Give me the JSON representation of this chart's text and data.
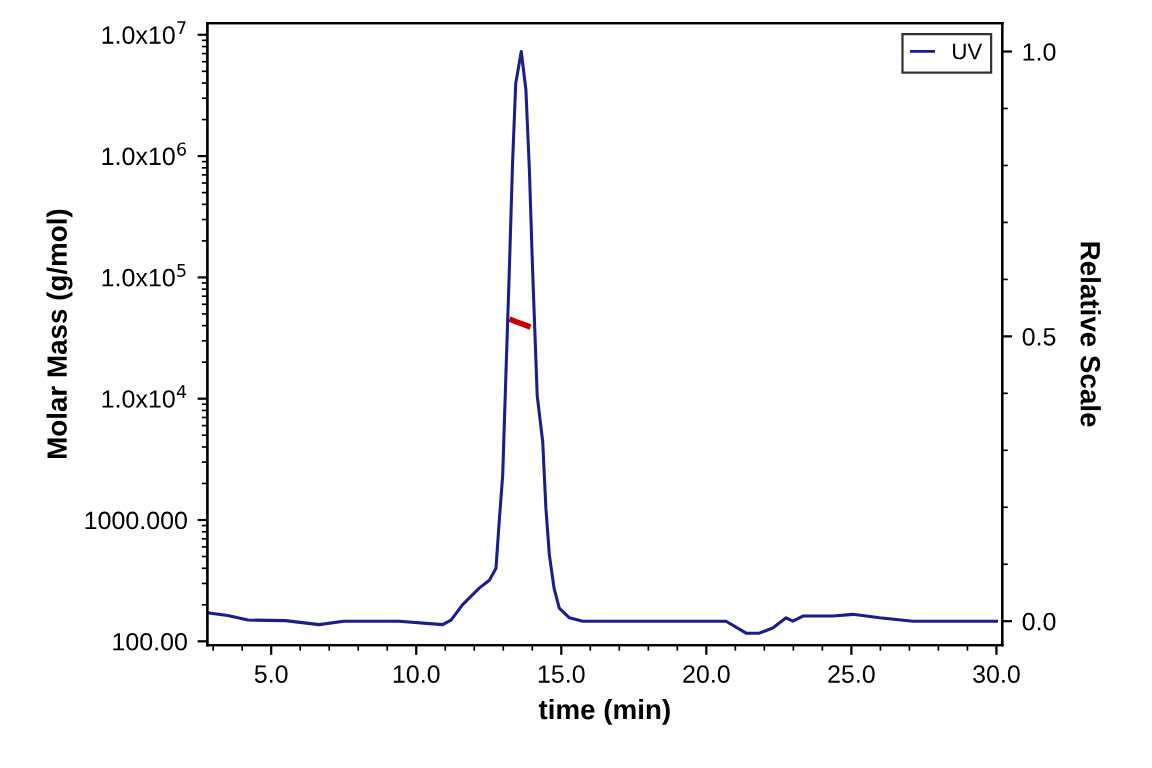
{
  "chart_data": {
    "type": "line",
    "xlabel": "time (min)",
    "ylabel": "Molar Mass (g/mol)",
    "y2label": "Relative Scale",
    "xlim": [
      2.8,
      30.2
    ],
    "xticks": [
      {
        "value": 5,
        "label": "5.0"
      },
      {
        "value": 10,
        "label": "10.0"
      },
      {
        "value": 15,
        "label": "15.0"
      },
      {
        "value": 20,
        "label": "20.0"
      },
      {
        "value": 25,
        "label": "25.0"
      },
      {
        "value": 30,
        "label": "30.0"
      }
    ],
    "log": "y",
    "ylim": [
      93,
      12500000
    ],
    "yticks": [
      {
        "value": 100,
        "label": "100.00"
      },
      {
        "value": 1000,
        "label": "1000.000"
      },
      {
        "value": 10000,
        "label": "1.0x10$^{4}$"
      },
      {
        "value": 100000,
        "label": "1.0x10$^{5}$"
      },
      {
        "value": 1000000,
        "label": "1.0x10$^{6}$"
      },
      {
        "value": 10000000,
        "label": "1.0x10$^{7}$"
      }
    ],
    "y2lim": [
      -0.042,
      1.05
    ],
    "y2ticks": [
      {
        "value": 0,
        "label": "0.0"
      },
      {
        "value": 0.5,
        "label": "0.5"
      },
      {
        "value": 1,
        "label": "1.0"
      }
    ],
    "legend": "top right",
    "grid": false,
    "marker": "none",
    "line_style": "solid",
    "series": [
      {
        "name": "UV",
        "color": "#1c1c8c",
        "axis": "y2",
        "x": [
          2.8,
          3.5,
          4.2,
          5.5,
          6.65,
          7.5,
          9.41,
          10.91,
          11.2,
          11.6,
          12.17,
          12.52,
          12.75,
          12.86,
          12.98,
          13.09,
          13.21,
          13.32,
          13.43,
          13.62,
          13.78,
          13.9,
          14.01,
          14.17,
          14.36,
          14.47,
          14.59,
          14.75,
          14.93,
          15.28,
          15.74,
          20.68,
          21.37,
          21.83,
          22.29,
          22.75,
          22.98,
          23.33,
          24.36,
          25.05,
          25.97,
          27.12,
          30.0
        ],
        "values": [
          0.015,
          0.01,
          0.002,
          0.001,
          -0.006,
          0.0,
          0.0,
          -0.006,
          0.002,
          0.029,
          0.058,
          0.072,
          0.093,
          0.175,
          0.256,
          0.431,
          0.618,
          0.804,
          0.944,
          1.0,
          0.933,
          0.793,
          0.618,
          0.396,
          0.315,
          0.198,
          0.116,
          0.058,
          0.023,
          0.006,
          0.0,
          0.0,
          -0.021,
          -0.021,
          -0.012,
          0.006,
          0.0,
          0.009,
          0.009,
          0.012,
          0.006,
          0.0,
          0.0
        ]
      },
      {
        "color": "#cc0000",
        "axis": "y",
        "x": [
          13.3,
          13.5,
          13.7,
          13.85
        ],
        "values": [
          44500,
          42500,
          41000,
          39700
        ]
      }
    ]
  }
}
